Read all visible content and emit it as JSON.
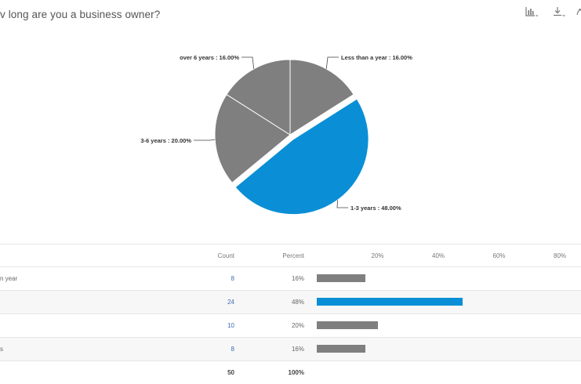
{
  "title": "v long are you a business owner?",
  "toolbar": {
    "icons": [
      "bar-chart-icon",
      "download-icon",
      "more-icon"
    ]
  },
  "chart_data": {
    "type": "pie",
    "slices": [
      {
        "label": "Less than a year : 16.00%",
        "name": "Less than a year",
        "value": 16.0,
        "color": "#7f7f7f",
        "exploded": false
      },
      {
        "label": "1-3 years : 48.00%",
        "name": "1-3 years",
        "value": 48.0,
        "color": "#0a8fd6",
        "exploded": true
      },
      {
        "label": "3-6 years : 20.00%",
        "name": "3-6 years",
        "value": 20.0,
        "color": "#7f7f7f",
        "exploded": false
      },
      {
        "label": "over 6 years : 16.00%",
        "name": "over 6 years",
        "value": 16.0,
        "color": "#7f7f7f",
        "exploded": false
      }
    ]
  },
  "table": {
    "headers": {
      "count": "Count",
      "percent": "Percent"
    },
    "axis_ticks": [
      "20%",
      "40%",
      "60%",
      "80%"
    ],
    "axis_max": 100,
    "rows": [
      {
        "label": "n year",
        "count": "8",
        "percent": "16%",
        "value": 16,
        "color": "#7f7f7f"
      },
      {
        "label": "",
        "count": "24",
        "percent": "48%",
        "value": 48,
        "color": "#0a8fd6"
      },
      {
        "label": "",
        "count": "10",
        "percent": "20%",
        "value": 20,
        "color": "#7f7f7f"
      },
      {
        "label": "s",
        "count": "8",
        "percent": "16%",
        "value": 16,
        "color": "#7f7f7f"
      }
    ],
    "total": {
      "count": "50",
      "percent": "100%"
    }
  }
}
